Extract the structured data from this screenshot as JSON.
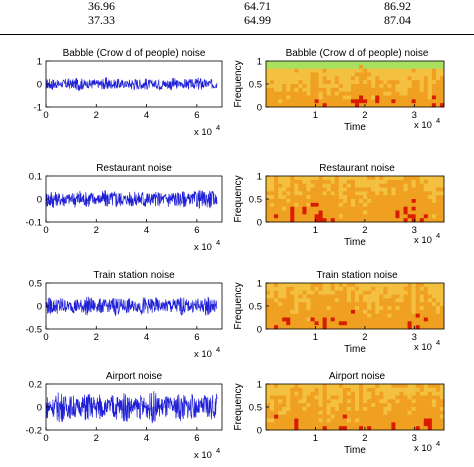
{
  "table": {
    "rows": [
      [
        "36.96",
        "64.71",
        "86.92"
      ],
      [
        "37.33",
        "64.99",
        "87.04"
      ]
    ]
  },
  "panels": [
    {
      "title": "Babble (Crow d of people) noise",
      "waveform": {
        "yticks": [
          "1",
          "0",
          "-1"
        ],
        "ylim": [
          -1,
          1
        ],
        "amplitude": 0.3
      },
      "spectrogram": {
        "title": "Babble (Crow d of people) noise"
      }
    },
    {
      "title": "Restaurant noise",
      "waveform": {
        "yticks": [
          "0.1",
          "0",
          "-0.1"
        ],
        "ylim": [
          -0.1,
          0.1
        ],
        "amplitude": 0.045
      },
      "spectrogram": {
        "title": "Restaurant noise"
      }
    },
    {
      "title": "Train station noise",
      "waveform": {
        "yticks": [
          "0.5",
          "0",
          "-0.5"
        ],
        "ylim": [
          -0.5,
          0.5
        ],
        "amplitude": 0.22
      },
      "spectrogram": {
        "title": "Train station noise"
      }
    },
    {
      "title": "Airport noise",
      "waveform": {
        "yticks": [
          "0.2",
          "0",
          "-0.2"
        ],
        "ylim": [
          -0.2,
          0.2
        ],
        "amplitude": 0.14
      },
      "spectrogram": {
        "title": "Airport noise"
      }
    }
  ],
  "waveform_axes": {
    "xticks": [
      "0",
      "2",
      "4",
      "6"
    ],
    "xlim": [
      0,
      70000
    ],
    "exponent": "x 10",
    "exponent_power": "4"
  },
  "spectrogram_axes": {
    "xticks": [
      "1",
      "2",
      "3"
    ],
    "yticks": [
      "1",
      "0.5",
      "0"
    ],
    "xlabel": "Time",
    "ylabel": "Frequency",
    "exponent": "x 10",
    "exponent_power": "4"
  },
  "colors": {
    "waveform": "#1f1fd6",
    "spectro_low": "#d81c00",
    "spectro_mid": "#f0a020",
    "spectro_high": "#a8e060"
  }
}
